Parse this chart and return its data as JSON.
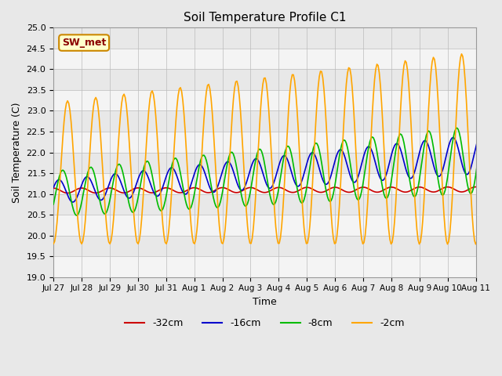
{
  "title": "Soil Temperature Profile C1",
  "xlabel": "Time",
  "ylabel": "Soil Temperature (C)",
  "ylim": [
    19.0,
    25.0
  ],
  "yticks": [
    19.0,
    19.5,
    20.0,
    20.5,
    21.0,
    21.5,
    22.0,
    22.5,
    23.0,
    23.5,
    24.0,
    24.5,
    25.0
  ],
  "bg_color": "#e8e8e8",
  "plot_bg_color": "#e8e8e8",
  "line_colors": {
    "-32cm": "#cc0000",
    "-16cm": "#0000cc",
    "-8cm": "#00bb00",
    "-2cm": "#ffa500"
  },
  "legend_labels": [
    "-32cm",
    "-16cm",
    "-8cm",
    "-2cm"
  ],
  "station_label": "SW_met",
  "station_label_color": "#8b0000",
  "station_label_bg": "#ffffcc",
  "n_days": 16,
  "xtick_labels": [
    "Jul 27",
    "Jul 28",
    "Jul 29",
    "Jul 30",
    "Jul 31",
    "Aug 1",
    "Aug 2",
    "Aug 3",
    "Aug 4",
    "Aug 5",
    "Aug 6",
    "Aug 7",
    "Aug 8",
    "Aug 9",
    "Aug 10",
    "Aug 11"
  ]
}
